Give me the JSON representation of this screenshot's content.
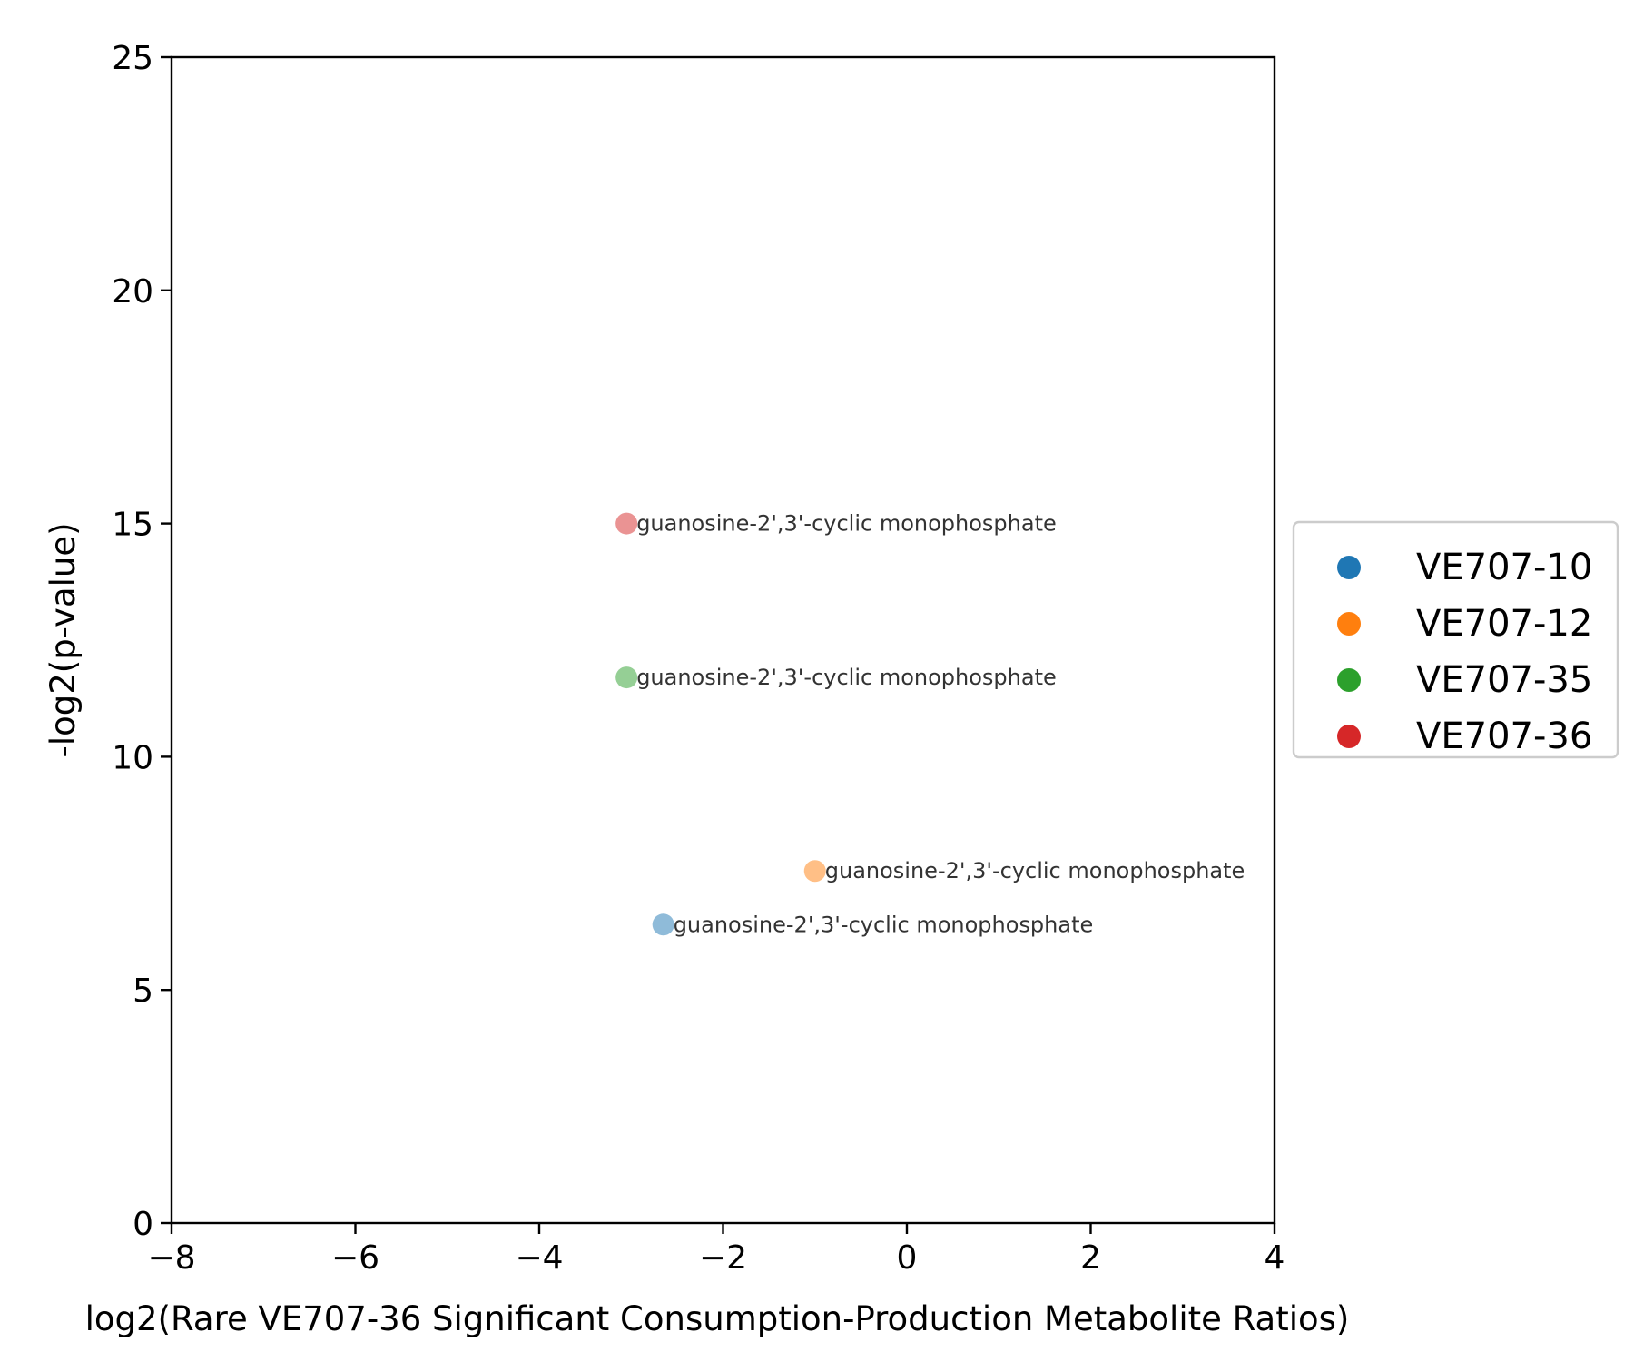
{
  "chart_data": {
    "type": "scatter",
    "title": "",
    "xlabel": "log2(Rare VE707-36 Significant Consumption-Production Metabolite Ratios)",
    "ylabel": "-log2(p-value)",
    "xlim": [
      -8,
      4
    ],
    "ylim": [
      0,
      25
    ],
    "xticks": [
      -8,
      -6,
      -4,
      -2,
      0,
      2,
      4
    ],
    "xtick_labels": [
      "−8",
      "−6",
      "−4",
      "−2",
      "0",
      "2",
      "4"
    ],
    "yticks": [
      0,
      5,
      10,
      15,
      20,
      25
    ],
    "ytick_labels": [
      "0",
      "5",
      "10",
      "15",
      "20",
      "25"
    ],
    "grid": false,
    "legend_position": "right",
    "series": [
      {
        "name": "VE707-10",
        "color": "#1f77b4",
        "points": [
          {
            "x": -2.65,
            "y": 6.4,
            "label": "guanosine-2',3'-cyclic monophosphate"
          }
        ]
      },
      {
        "name": "VE707-12",
        "color": "#ff7f0e",
        "points": [
          {
            "x": -1.0,
            "y": 7.55,
            "label": "guanosine-2',3'-cyclic monophosphate"
          }
        ]
      },
      {
        "name": "VE707-35",
        "color": "#2ca02c",
        "points": [
          {
            "x": -3.05,
            "y": 11.7,
            "label": "guanosine-2',3'-cyclic monophosphate"
          }
        ]
      },
      {
        "name": "VE707-36",
        "color": "#d62728",
        "points": [
          {
            "x": -3.05,
            "y": 15.0,
            "label": "guanosine-2',3'-cyclic monophosphate"
          }
        ]
      }
    ]
  }
}
